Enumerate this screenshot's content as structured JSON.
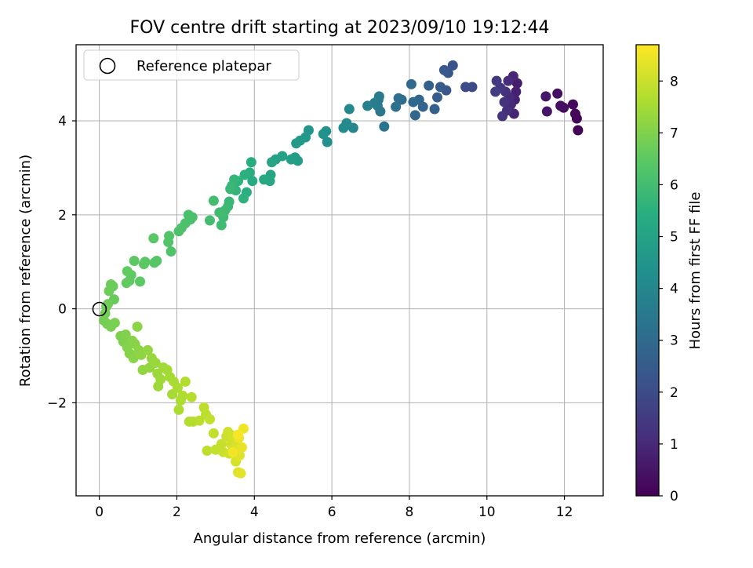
{
  "chart_data": {
    "type": "scatter",
    "title": "FOV centre drift starting at 2023/09/10 19:12:44",
    "xlabel": "Angular distance from reference (arcmin)",
    "ylabel": "Rotation from reference (arcmin)",
    "xlim": [
      -0.6,
      13.0
    ],
    "ylim": [
      -3.98,
      5.62
    ],
    "xticks": [
      0,
      2,
      4,
      6,
      8,
      10,
      12
    ],
    "yticks": [
      -2,
      0,
      2,
      4
    ],
    "xtick_labels": [
      "0",
      "2",
      "4",
      "6",
      "8",
      "10",
      "12"
    ],
    "ytick_labels": [
      "−2",
      "0",
      "2",
      "4"
    ],
    "grid": true,
    "legend": {
      "placement": "top-left",
      "entries": [
        "Reference platepar"
      ]
    },
    "reference_point": {
      "x": 0,
      "y": 0,
      "label": "Reference platepar"
    },
    "colorbar": {
      "label": "Hours from first FF file",
      "range": [
        0,
        8.7
      ],
      "ticks": [
        0,
        1,
        2,
        3,
        4,
        5,
        6,
        7,
        8
      ],
      "colormap": "viridis"
    },
    "series": [
      {
        "color_by": "hours",
        "points": [
          {
            "x": 12.35,
            "y": 3.8,
            "t": 0.05
          },
          {
            "x": 12.32,
            "y": 4.05,
            "t": 0.1
          },
          {
            "x": 12.28,
            "y": 4.15,
            "t": 0.15
          },
          {
            "x": 12.22,
            "y": 4.35,
            "t": 0.2
          },
          {
            "x": 11.98,
            "y": 4.28,
            "t": 0.3
          },
          {
            "x": 11.9,
            "y": 4.32,
            "t": 0.35
          },
          {
            "x": 11.82,
            "y": 4.58,
            "t": 0.4
          },
          {
            "x": 11.55,
            "y": 4.2,
            "t": 0.5
          },
          {
            "x": 11.52,
            "y": 4.52,
            "t": 0.55
          },
          {
            "x": 10.78,
            "y": 4.8,
            "t": 0.7
          },
          {
            "x": 10.75,
            "y": 4.62,
            "t": 0.8
          },
          {
            "x": 10.72,
            "y": 4.45,
            "t": 0.85
          },
          {
            "x": 10.7,
            "y": 4.15,
            "t": 0.9
          },
          {
            "x": 10.68,
            "y": 4.95,
            "t": 0.95
          },
          {
            "x": 10.62,
            "y": 4.35,
            "t": 1.0
          },
          {
            "x": 10.58,
            "y": 4.5,
            "t": 1.05
          },
          {
            "x": 10.55,
            "y": 4.85,
            "t": 1.1
          },
          {
            "x": 10.52,
            "y": 4.22,
            "t": 1.15
          },
          {
            "x": 10.48,
            "y": 4.62,
            "t": 1.2
          },
          {
            "x": 10.45,
            "y": 4.4,
            "t": 1.25
          },
          {
            "x": 10.4,
            "y": 4.1,
            "t": 1.3
          },
          {
            "x": 10.35,
            "y": 4.7,
            "t": 1.35
          },
          {
            "x": 10.25,
            "y": 4.85,
            "t": 1.45
          },
          {
            "x": 10.22,
            "y": 4.62,
            "t": 1.55
          },
          {
            "x": 9.62,
            "y": 4.72,
            "t": 1.9
          },
          {
            "x": 9.45,
            "y": 4.72,
            "t": 2.0
          },
          {
            "x": 9.12,
            "y": 5.18,
            "t": 2.2
          },
          {
            "x": 9.0,
            "y": 5.02,
            "t": 2.3
          },
          {
            "x": 8.95,
            "y": 4.65,
            "t": 2.35
          },
          {
            "x": 8.9,
            "y": 5.08,
            "t": 2.4
          },
          {
            "x": 8.8,
            "y": 4.72,
            "t": 2.5
          },
          {
            "x": 8.72,
            "y": 4.5,
            "t": 2.55
          },
          {
            "x": 8.5,
            "y": 4.75,
            "t": 2.65
          },
          {
            "x": 8.65,
            "y": 4.25,
            "t": 2.7
          },
          {
            "x": 8.35,
            "y": 4.3,
            "t": 2.8
          },
          {
            "x": 8.25,
            "y": 4.45,
            "t": 2.85
          },
          {
            "x": 8.15,
            "y": 4.12,
            "t": 2.9
          },
          {
            "x": 8.1,
            "y": 4.4,
            "t": 2.95
          },
          {
            "x": 8.05,
            "y": 4.78,
            "t": 3.0
          },
          {
            "x": 7.8,
            "y": 4.45,
            "t": 3.1
          },
          {
            "x": 7.72,
            "y": 4.48,
            "t": 3.15
          },
          {
            "x": 7.65,
            "y": 4.3,
            "t": 3.2
          },
          {
            "x": 7.35,
            "y": 3.88,
            "t": 3.35
          },
          {
            "x": 7.25,
            "y": 4.2,
            "t": 3.45
          },
          {
            "x": 7.22,
            "y": 4.52,
            "t": 3.5
          },
          {
            "x": 7.2,
            "y": 4.45,
            "t": 3.55
          },
          {
            "x": 7.18,
            "y": 4.32,
            "t": 3.6
          },
          {
            "x": 7.1,
            "y": 4.38,
            "t": 3.65
          },
          {
            "x": 6.92,
            "y": 4.32,
            "t": 3.8
          },
          {
            "x": 6.55,
            "y": 3.85,
            "t": 4.0
          },
          {
            "x": 6.45,
            "y": 4.25,
            "t": 4.05
          },
          {
            "x": 6.38,
            "y": 3.95,
            "t": 4.1
          },
          {
            "x": 6.3,
            "y": 3.85,
            "t": 4.15
          },
          {
            "x": 5.88,
            "y": 3.55,
            "t": 4.3
          },
          {
            "x": 5.85,
            "y": 3.78,
            "t": 4.35
          },
          {
            "x": 5.78,
            "y": 3.72,
            "t": 4.4
          },
          {
            "x": 5.4,
            "y": 3.8,
            "t": 4.55
          },
          {
            "x": 5.32,
            "y": 3.65,
            "t": 4.6
          },
          {
            "x": 5.18,
            "y": 3.58,
            "t": 4.65
          },
          {
            "x": 5.08,
            "y": 3.52,
            "t": 4.7
          },
          {
            "x": 5.12,
            "y": 3.15,
            "t": 4.75
          },
          {
            "x": 5.05,
            "y": 3.22,
            "t": 4.8
          },
          {
            "x": 4.95,
            "y": 3.18,
            "t": 4.85
          },
          {
            "x": 4.72,
            "y": 3.25,
            "t": 4.95
          },
          {
            "x": 4.55,
            "y": 3.18,
            "t": 5.0
          },
          {
            "x": 4.45,
            "y": 3.12,
            "t": 5.05
          },
          {
            "x": 4.42,
            "y": 2.85,
            "t": 5.1
          },
          {
            "x": 4.4,
            "y": 2.72,
            "t": 5.15
          },
          {
            "x": 4.25,
            "y": 2.75,
            "t": 5.2
          },
          {
            "x": 3.95,
            "y": 2.72,
            "t": 5.3
          },
          {
            "x": 3.92,
            "y": 3.12,
            "t": 5.35
          },
          {
            "x": 3.88,
            "y": 2.9,
            "t": 5.4
          },
          {
            "x": 3.8,
            "y": 2.48,
            "t": 5.45
          },
          {
            "x": 3.75,
            "y": 2.85,
            "t": 5.5
          },
          {
            "x": 3.72,
            "y": 2.35,
            "t": 5.55
          },
          {
            "x": 3.58,
            "y": 2.72,
            "t": 5.6
          },
          {
            "x": 3.52,
            "y": 2.52,
            "t": 5.65
          },
          {
            "x": 3.48,
            "y": 2.75,
            "t": 5.7
          },
          {
            "x": 3.42,
            "y": 2.62,
            "t": 5.75
          },
          {
            "x": 3.38,
            "y": 2.55,
            "t": 5.8
          },
          {
            "x": 3.35,
            "y": 2.28,
            "t": 5.82
          },
          {
            "x": 3.32,
            "y": 2.18,
            "t": 5.85
          },
          {
            "x": 3.25,
            "y": 2.1,
            "t": 5.9
          },
          {
            "x": 3.2,
            "y": 1.95,
            "t": 5.92
          },
          {
            "x": 3.15,
            "y": 1.78,
            "t": 5.95
          },
          {
            "x": 3.1,
            "y": 2.05,
            "t": 5.97
          },
          {
            "x": 2.95,
            "y": 2.3,
            "t": 6.0
          },
          {
            "x": 2.85,
            "y": 1.88,
            "t": 6.02
          },
          {
            "x": 2.4,
            "y": 1.95,
            "t": 6.1
          },
          {
            "x": 2.35,
            "y": 1.9,
            "t": 6.12
          },
          {
            "x": 2.3,
            "y": 2.0,
            "t": 6.15
          },
          {
            "x": 2.22,
            "y": 1.82,
            "t": 6.18
          },
          {
            "x": 2.12,
            "y": 1.72,
            "t": 6.2
          },
          {
            "x": 2.05,
            "y": 1.65,
            "t": 6.22
          },
          {
            "x": 1.85,
            "y": 1.22,
            "t": 6.25
          },
          {
            "x": 1.8,
            "y": 1.55,
            "t": 6.27
          },
          {
            "x": 1.78,
            "y": 1.42,
            "t": 6.3
          },
          {
            "x": 1.48,
            "y": 1.02,
            "t": 6.35
          },
          {
            "x": 1.42,
            "y": 0.98,
            "t": 6.38
          },
          {
            "x": 1.4,
            "y": 1.5,
            "t": 6.4
          },
          {
            "x": 1.18,
            "y": 1.0,
            "t": 6.42
          },
          {
            "x": 1.15,
            "y": 0.95,
            "t": 6.45
          },
          {
            "x": 1.05,
            "y": 0.58,
            "t": 6.47
          },
          {
            "x": 0.9,
            "y": 1.02,
            "t": 6.5
          },
          {
            "x": 0.82,
            "y": 0.72,
            "t": 6.52
          },
          {
            "x": 0.78,
            "y": 0.6,
            "t": 6.55
          },
          {
            "x": 0.72,
            "y": 0.8,
            "t": 6.57
          },
          {
            "x": 0.7,
            "y": 0.55,
            "t": 6.6
          },
          {
            "x": 0.38,
            "y": 0.2,
            "t": 6.65
          },
          {
            "x": 0.35,
            "y": 0.48,
            "t": 6.67
          },
          {
            "x": 0.3,
            "y": 0.52,
            "t": 6.7
          },
          {
            "x": 0.25,
            "y": 0.38,
            "t": 6.72
          },
          {
            "x": 0.22,
            "y": 0.1,
            "t": 6.75
          },
          {
            "x": 0.18,
            "y": 0.05,
            "t": 6.77
          },
          {
            "x": 0.15,
            "y": -0.1,
            "t": 6.8
          },
          {
            "x": 0.12,
            "y": -0.25,
            "t": 6.82
          },
          {
            "x": 0.2,
            "y": -0.32,
            "t": 6.85
          },
          {
            "x": 0.3,
            "y": -0.38,
            "t": 6.88
          },
          {
            "x": 0.4,
            "y": -0.3,
            "t": 6.9
          },
          {
            "x": 0.55,
            "y": -0.58,
            "t": 6.95
          },
          {
            "x": 0.62,
            "y": -0.7,
            "t": 6.98
          },
          {
            "x": 0.68,
            "y": -0.55,
            "t": 7.0
          },
          {
            "x": 0.72,
            "y": -0.82,
            "t": 7.02
          },
          {
            "x": 0.78,
            "y": -0.95,
            "t": 7.05
          },
          {
            "x": 0.85,
            "y": -0.68,
            "t": 7.07
          },
          {
            "x": 0.88,
            "y": -1.05,
            "t": 7.1
          },
          {
            "x": 0.92,
            "y": -0.75,
            "t": 7.12
          },
          {
            "x": 0.98,
            "y": -0.38,
            "t": 7.15
          },
          {
            "x": 1.02,
            "y": -0.88,
            "t": 7.17
          },
          {
            "x": 1.08,
            "y": -0.98,
            "t": 7.2
          },
          {
            "x": 1.12,
            "y": -1.3,
            "t": 7.22
          },
          {
            "x": 1.25,
            "y": -0.88,
            "t": 7.25
          },
          {
            "x": 1.3,
            "y": -1.25,
            "t": 7.27
          },
          {
            "x": 1.35,
            "y": -1.05,
            "t": 7.3
          },
          {
            "x": 1.45,
            "y": -1.15,
            "t": 7.33
          },
          {
            "x": 1.5,
            "y": -1.38,
            "t": 7.36
          },
          {
            "x": 1.52,
            "y": -1.65,
            "t": 7.4
          },
          {
            "x": 1.58,
            "y": -1.5,
            "t": 7.42
          },
          {
            "x": 1.65,
            "y": -1.25,
            "t": 7.45
          },
          {
            "x": 1.75,
            "y": -1.3,
            "t": 7.48
          },
          {
            "x": 1.82,
            "y": -1.45,
            "t": 7.5
          },
          {
            "x": 1.88,
            "y": -1.82,
            "t": 7.52
          },
          {
            "x": 1.92,
            "y": -1.55,
            "t": 7.55
          },
          {
            "x": 2.02,
            "y": -1.68,
            "t": 7.58
          },
          {
            "x": 2.05,
            "y": -2.15,
            "t": 7.6
          },
          {
            "x": 2.1,
            "y": -1.95,
            "t": 7.62
          },
          {
            "x": 2.15,
            "y": -1.85,
            "t": 7.65
          },
          {
            "x": 2.22,
            "y": -1.55,
            "t": 7.68
          },
          {
            "x": 2.32,
            "y": -2.4,
            "t": 7.7
          },
          {
            "x": 2.42,
            "y": -2.4,
            "t": 7.72
          },
          {
            "x": 2.38,
            "y": -1.88,
            "t": 7.75
          },
          {
            "x": 2.58,
            "y": -2.38,
            "t": 7.78
          },
          {
            "x": 2.7,
            "y": -2.1,
            "t": 7.8
          },
          {
            "x": 2.75,
            "y": -2.25,
            "t": 7.82
          },
          {
            "x": 2.78,
            "y": -3.02,
            "t": 7.85
          },
          {
            "x": 2.85,
            "y": -2.35,
            "t": 7.88
          },
          {
            "x": 2.95,
            "y": -2.65,
            "t": 7.9
          },
          {
            "x": 3.0,
            "y": -3.0,
            "t": 7.92
          },
          {
            "x": 3.15,
            "y": -2.88,
            "t": 7.95
          },
          {
            "x": 3.2,
            "y": -3.05,
            "t": 7.98
          },
          {
            "x": 3.28,
            "y": -2.72,
            "t": 8.0
          },
          {
            "x": 3.32,
            "y": -2.62,
            "t": 8.03
          },
          {
            "x": 3.35,
            "y": -3.08,
            "t": 8.06
          },
          {
            "x": 3.4,
            "y": -2.88,
            "t": 8.1
          },
          {
            "x": 3.45,
            "y": -2.7,
            "t": 8.12
          },
          {
            "x": 3.5,
            "y": -2.95,
            "t": 8.15
          },
          {
            "x": 3.52,
            "y": -3.25,
            "t": 8.18
          },
          {
            "x": 3.55,
            "y": -2.85,
            "t": 8.2
          },
          {
            "x": 3.58,
            "y": -3.48,
            "t": 8.25
          },
          {
            "x": 3.62,
            "y": -3.12,
            "t": 8.3
          },
          {
            "x": 3.65,
            "y": -3.5,
            "t": 8.35
          },
          {
            "x": 3.68,
            "y": -2.95,
            "t": 8.4
          },
          {
            "x": 3.6,
            "y": -2.75,
            "t": 8.45
          },
          {
            "x": 3.72,
            "y": -2.55,
            "t": 8.5
          },
          {
            "x": 3.45,
            "y": -3.05,
            "t": 8.55
          },
          {
            "x": 3.58,
            "y": -2.68,
            "t": 8.6
          }
        ]
      }
    ]
  }
}
